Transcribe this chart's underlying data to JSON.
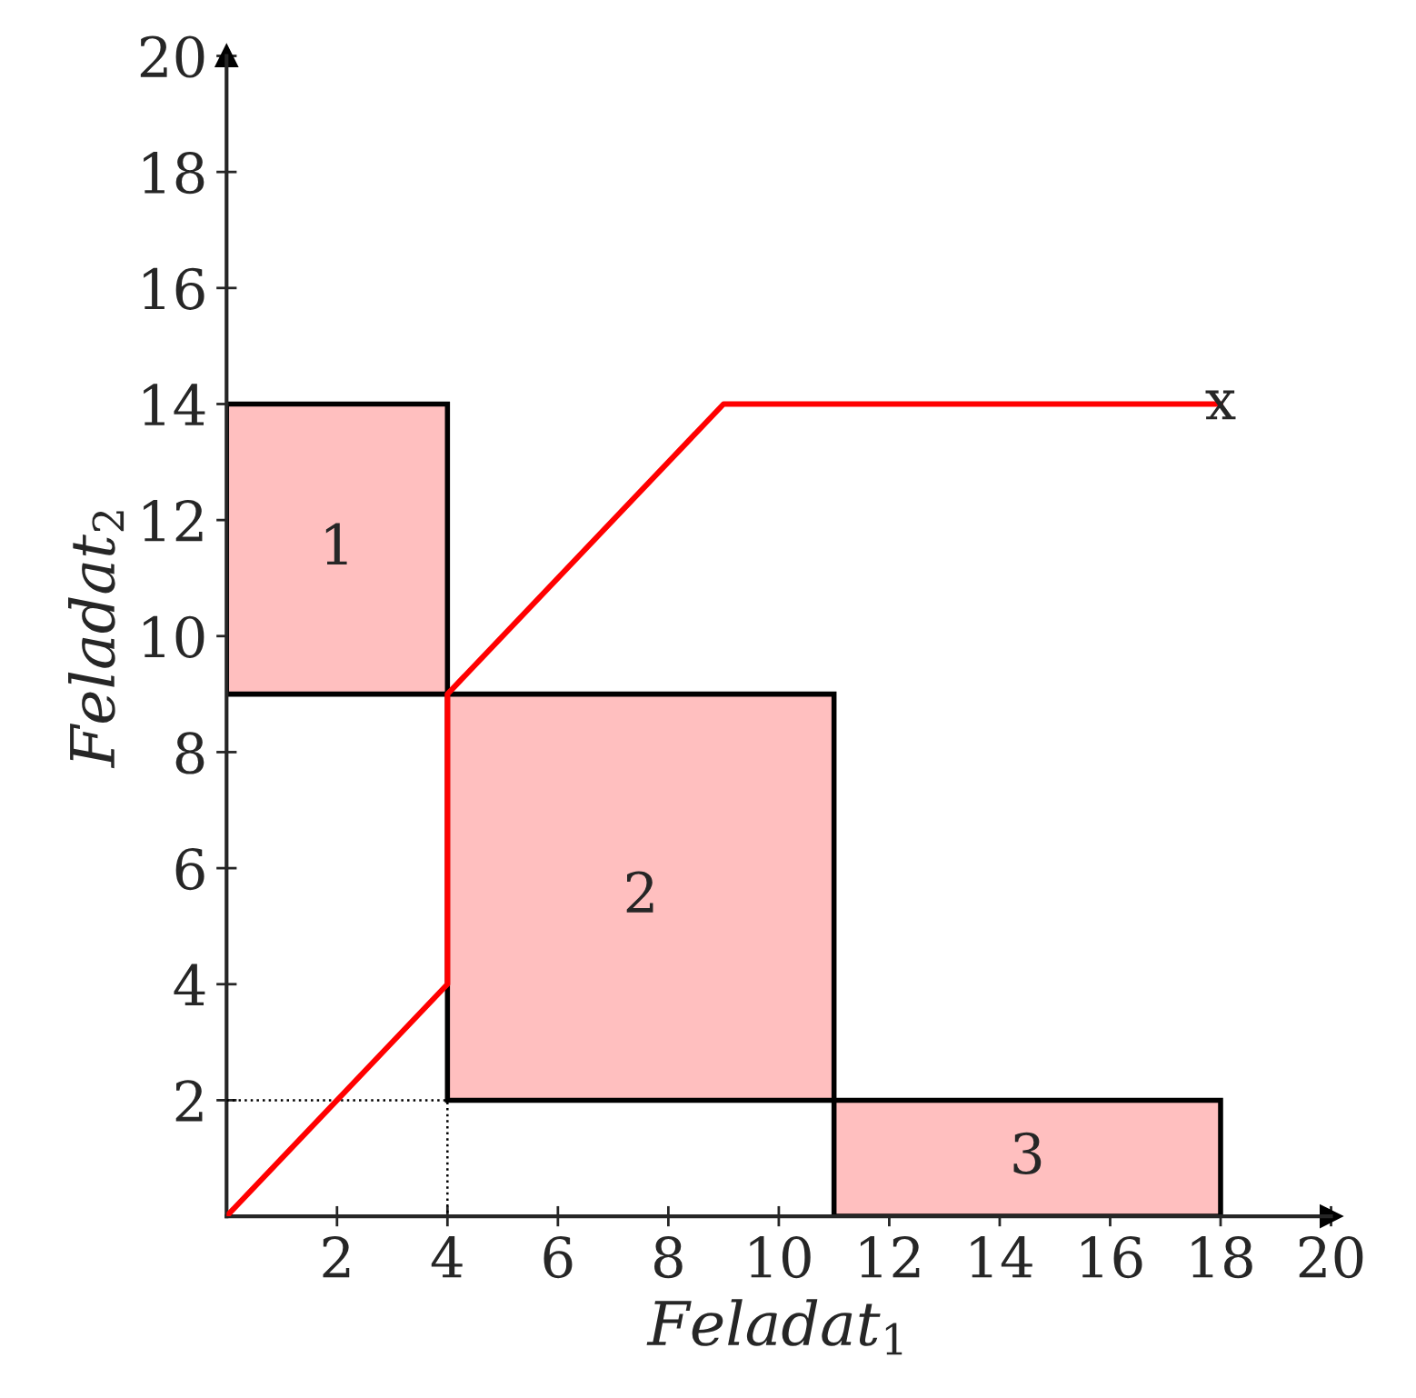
{
  "chart_data": {
    "type": "line",
    "xlabel": "Feladat$_{1}$",
    "ylabel": "Feladat$_{2}$",
    "xlim": [
      0,
      20
    ],
    "ylim": [
      0,
      20
    ],
    "xticks": [
      2,
      4,
      6,
      8,
      10,
      12,
      14,
      16,
      18,
      20
    ],
    "yticks": [
      2,
      4,
      6,
      8,
      10,
      12,
      14,
      16,
      18,
      20
    ],
    "grid": false,
    "legend": false,
    "series": [
      {
        "type": "area",
        "color": "#ffbfbf",
        "x": [
          0,
          4,
          4,
          0,
          0
        ],
        "values": [
          9,
          9,
          14,
          14,
          9
        ]
      },
      {
        "type": "area",
        "color": "#ffbfbf",
        "x": [
          4,
          11,
          11,
          4,
          4
        ],
        "values": [
          2,
          2,
          9,
          9,
          2
        ]
      },
      {
        "type": "area",
        "color": "#ffbfbf",
        "x": [
          11,
          18,
          18,
          11,
          11
        ],
        "values": [
          0,
          0,
          2,
          2,
          0
        ]
      },
      {
        "color": "#000000",
        "line_style": "dotted",
        "x": [
          0,
          4,
          4
        ],
        "values": [
          2,
          2,
          0
        ]
      },
      {
        "color": "#ff0000",
        "line_style": "solid",
        "x": [
          0,
          4,
          4,
          9,
          18
        ],
        "values": [
          0,
          4,
          9,
          14,
          14
        ]
      }
    ],
    "annotations": [
      "1",
      "2",
      "3",
      {
        "text": "x",
        "x": 18,
        "y": 14
      }
    ]
  }
}
